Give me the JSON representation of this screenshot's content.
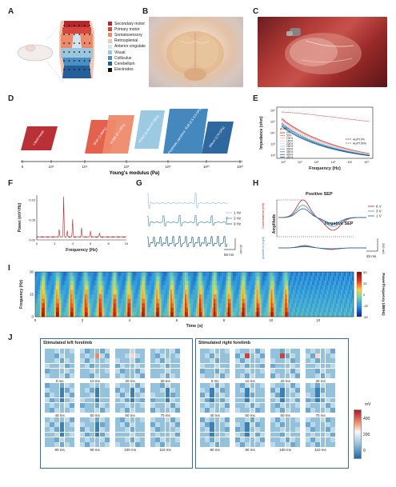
{
  "panel_labels": [
    "A",
    "B",
    "C",
    "D",
    "E",
    "F",
    "G",
    "H",
    "I",
    "J"
  ],
  "panel_a": {
    "legend": [
      {
        "label": "Secondary motor",
        "color": "#b5262c"
      },
      {
        "label": "Primary motor",
        "color": "#d6463c"
      },
      {
        "label": "Somatosensory",
        "color": "#ec8a6c"
      },
      {
        "label": "Retrosplenial",
        "color": "#f2c5b0"
      },
      {
        "label": "Anterior cingulate",
        "color": "#d4e4ef"
      },
      {
        "label": "Visual",
        "color": "#9cc6de"
      },
      {
        "label": "Colliculus",
        "color": "#4a8fc1"
      },
      {
        "label": "Cerebellum",
        "color": "#245f9a"
      },
      {
        "label": "Electrodes",
        "color": "#111111"
      }
    ]
  },
  "panel_d": {
    "xlabel": "Young's modulus (Pa)",
    "ticks": [
      "0",
      "10⁶",
      "10⁴",
      "10⁶",
      "10⁸",
      "10¹⁰",
      "10¹²"
    ],
    "materials": [
      {
        "label": "Liquid metal",
        "color": "#b5262c"
      },
      {
        "label": "Brain (1-6kPa)",
        "color": "#e05a43"
      },
      {
        "label": "eLiME (0.1 MPa)",
        "color": "#ef8a6c"
      },
      {
        "label": "PDMS (0.36-0.87 MPa)",
        "color": "#97c7e2"
      },
      {
        "label": "Polyimide, parylene, SU8 (2.5-3.5 GPa)",
        "color": "#3a82bb"
      },
      {
        "label": "Silicon (179 GPa)",
        "color": "#245f9a"
      }
    ]
  },
  "panel_e": {
    "ylabel": "Impedance (ohm)",
    "xlabel": "Frequency (Hz)",
    "legend_title": "μLME",
    "legend_top": [
      {
        "label": "Au/Pt 0%",
        "color": "#111111"
      },
      {
        "label": "Au/Pt 50%",
        "color": "#c0282e"
      }
    ],
    "legend": [
      {
        "label": "0%",
        "color": "#c0282e"
      },
      {
        "label": "50%",
        "color": "#e07a6a"
      },
      {
        "label": "100%",
        "color": "#f0a898"
      },
      {
        "label": "150%",
        "color": "#f7d0c4"
      },
      {
        "label": "200%",
        "color": "#c9e0ec"
      },
      {
        "label": "250%",
        "color": "#98c6dd"
      },
      {
        "label": "300%",
        "color": "#6aa8cf"
      },
      {
        "label": "350%",
        "color": "#3c84b8"
      },
      {
        "label": "400%",
        "color": "#25609a"
      },
      {
        "label": "450%",
        "color": "#14427a"
      }
    ],
    "xticks": [
      "10⁰",
      "10¹",
      "10²",
      "10³",
      "10⁴",
      "10⁵"
    ],
    "yticks": [
      "10²",
      "10³",
      "10⁴",
      "10⁵",
      "10⁶"
    ]
  },
  "panel_f": {
    "ylabel": "Power (mV²/Hz)",
    "xlabel": "Frequency (Hz)",
    "yticks": [
      "0.00",
      "0.05",
      "0.10"
    ],
    "xticks": [
      "0",
      "2",
      "4",
      "6",
      "8",
      "10"
    ]
  },
  "panel_g": {
    "legend": [
      "1 Hz",
      "3 Hz",
      "9 Hz"
    ],
    "scale_y": "30 mV",
    "scale_x": "50 ms"
  },
  "panel_h": {
    "positive": "Positive SEP",
    "negative": "Negative SEP",
    "amplitude": "Amplitude",
    "contralateral": "Contralateral (left)",
    "ipsilateral": "Ipsilateral (right)",
    "legend": [
      "6 V",
      "3 V",
      "1 V"
    ],
    "scale_y": "250 mV",
    "scale_x": "25 ms"
  },
  "panel_i": {
    "ylabel": "Frequency (Hz)",
    "xlabel": "Time (s)",
    "cbar_label": "Power/frequency (dB/Hz)",
    "yticks": [
      "0",
      "15",
      "30"
    ],
    "xticks": [
      "0",
      "2",
      "4",
      "6",
      "8",
      "10",
      "12"
    ],
    "cbar_ticks": [
      "50",
      "25",
      "0",
      "-25",
      "-50"
    ]
  },
  "panel_j": {
    "left_title": "Stimulated left forelimb",
    "right_title": "Stimulated right forelimb",
    "times": [
      "0 ms",
      "10 ms",
      "20 ms",
      "30 ms",
      "40 ms",
      "50 ms",
      "60 ms",
      "70 ms",
      "80 ms",
      "90 ms",
      "100 ms",
      "110 ms"
    ],
    "cbar_unit": "mV",
    "cbar_ticks": [
      "400",
      "200",
      "0"
    ]
  }
}
